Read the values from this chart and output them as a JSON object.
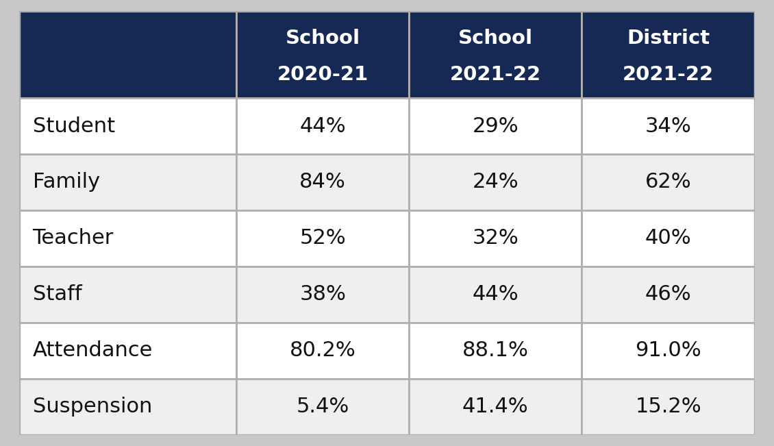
{
  "header_bg_color": "#162955",
  "header_text_color": "#ffffff",
  "col_headers": [
    [
      "School",
      "2020-21"
    ],
    [
      "School",
      "2021-22"
    ],
    [
      "District",
      "2021-22"
    ]
  ],
  "row_labels": [
    "Student",
    "Family",
    "Teacher",
    "Staff",
    "Attendance",
    "Suspension"
  ],
  "values": [
    [
      "44%",
      "29%",
      "34%"
    ],
    [
      "84%",
      "24%",
      "62%"
    ],
    [
      "52%",
      "32%",
      "40%"
    ],
    [
      "38%",
      "44%",
      "46%"
    ],
    [
      "80.2%",
      "88.1%",
      "91.0%"
    ],
    [
      "5.4%",
      "41.4%",
      "15.2%"
    ]
  ],
  "row_bg_colors": [
    "#ffffff",
    "#efefef",
    "#ffffff",
    "#efefef",
    "#ffffff",
    "#efefef"
  ],
  "grid_color": "#b0b0b0",
  "text_color": "#111111",
  "figure_bg": "#c8c8c8",
  "table_bg": "#ffffff",
  "header_line_color": "#1a2e5a"
}
